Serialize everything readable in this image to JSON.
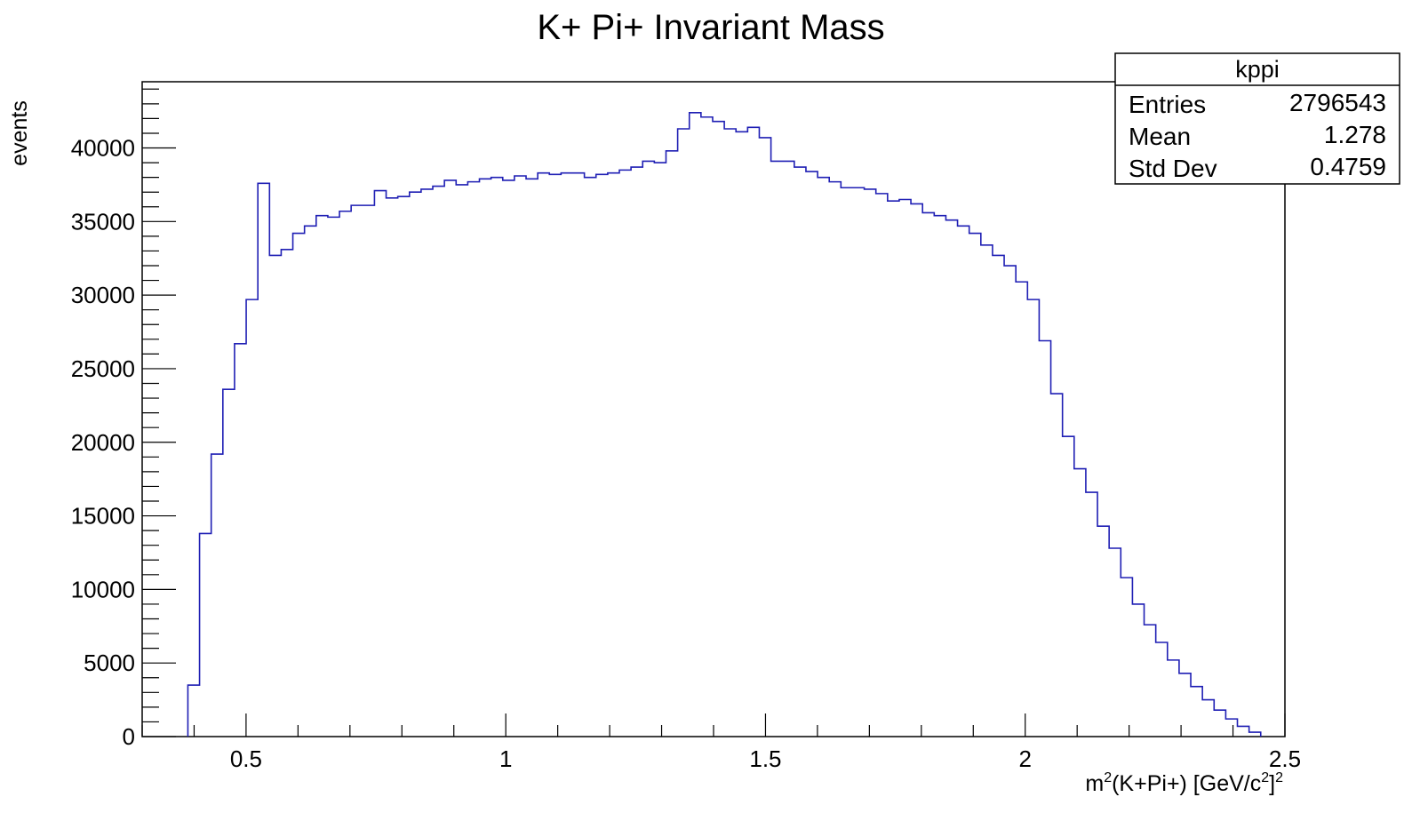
{
  "chart_data": {
    "type": "bar",
    "style": "step-histogram",
    "title": "K+ Pi+ Invariant Mass",
    "xlabel": {
      "prefix": "m",
      "sup1": "2",
      "mid": "(K+Pi+) [GeV/c",
      "sup2": "2",
      "close": "]",
      "sup3": "2"
    },
    "ylabel": "events",
    "xlim": [
      0.3,
      2.5
    ],
    "ylim": [
      0,
      44500
    ],
    "x_ticks": [
      0.5,
      1,
      1.5,
      2,
      2.5
    ],
    "x_tick_labels": [
      "0.5",
      "1",
      "1.5",
      "2",
      "2.5"
    ],
    "y_ticks": [
      0,
      5000,
      10000,
      15000,
      20000,
      25000,
      30000,
      35000,
      40000
    ],
    "y_tick_labels": [
      "0",
      "5000",
      "10000",
      "15000",
      "20000",
      "25000",
      "30000",
      "35000",
      "40000"
    ],
    "line_color": "#1f1fb4",
    "grid": false,
    "legend": "none",
    "bins": {
      "x_start": 0.388,
      "bin_width": 0.02245,
      "values": [
        3500,
        13800,
        19200,
        23600,
        26700,
        29700,
        37600,
        32700,
        33100,
        34200,
        34700,
        35400,
        35300,
        35700,
        36100,
        36100,
        37100,
        36600,
        36700,
        37000,
        37200,
        37400,
        37800,
        37500,
        37700,
        37900,
        38000,
        37800,
        38100,
        37900,
        38300,
        38200,
        38300,
        38300,
        38000,
        38200,
        38300,
        38500,
        38700,
        39100,
        39000,
        39800,
        41300,
        42400,
        42100,
        41800,
        41300,
        41100,
        41400,
        40700,
        39100,
        39100,
        38700,
        38400,
        38000,
        37700,
        37300,
        37300,
        37200,
        36900,
        36400,
        36500,
        36200,
        35600,
        35400,
        35100,
        34700,
        34200,
        33400,
        32700,
        32000,
        30900,
        29700,
        26900,
        23300,
        20400,
        18200,
        16600,
        14300,
        12800,
        10800,
        9000,
        7600,
        6400,
        5200,
        4300,
        3400,
        2500,
        1800,
        1200,
        700,
        300
      ]
    },
    "stats_box": {
      "name": "kppi",
      "rows": [
        {
          "label": "Entries",
          "value": "2796543"
        },
        {
          "label": "Mean",
          "value": "1.278"
        },
        {
          "label": "Std Dev",
          "value": "0.4759"
        }
      ]
    }
  }
}
